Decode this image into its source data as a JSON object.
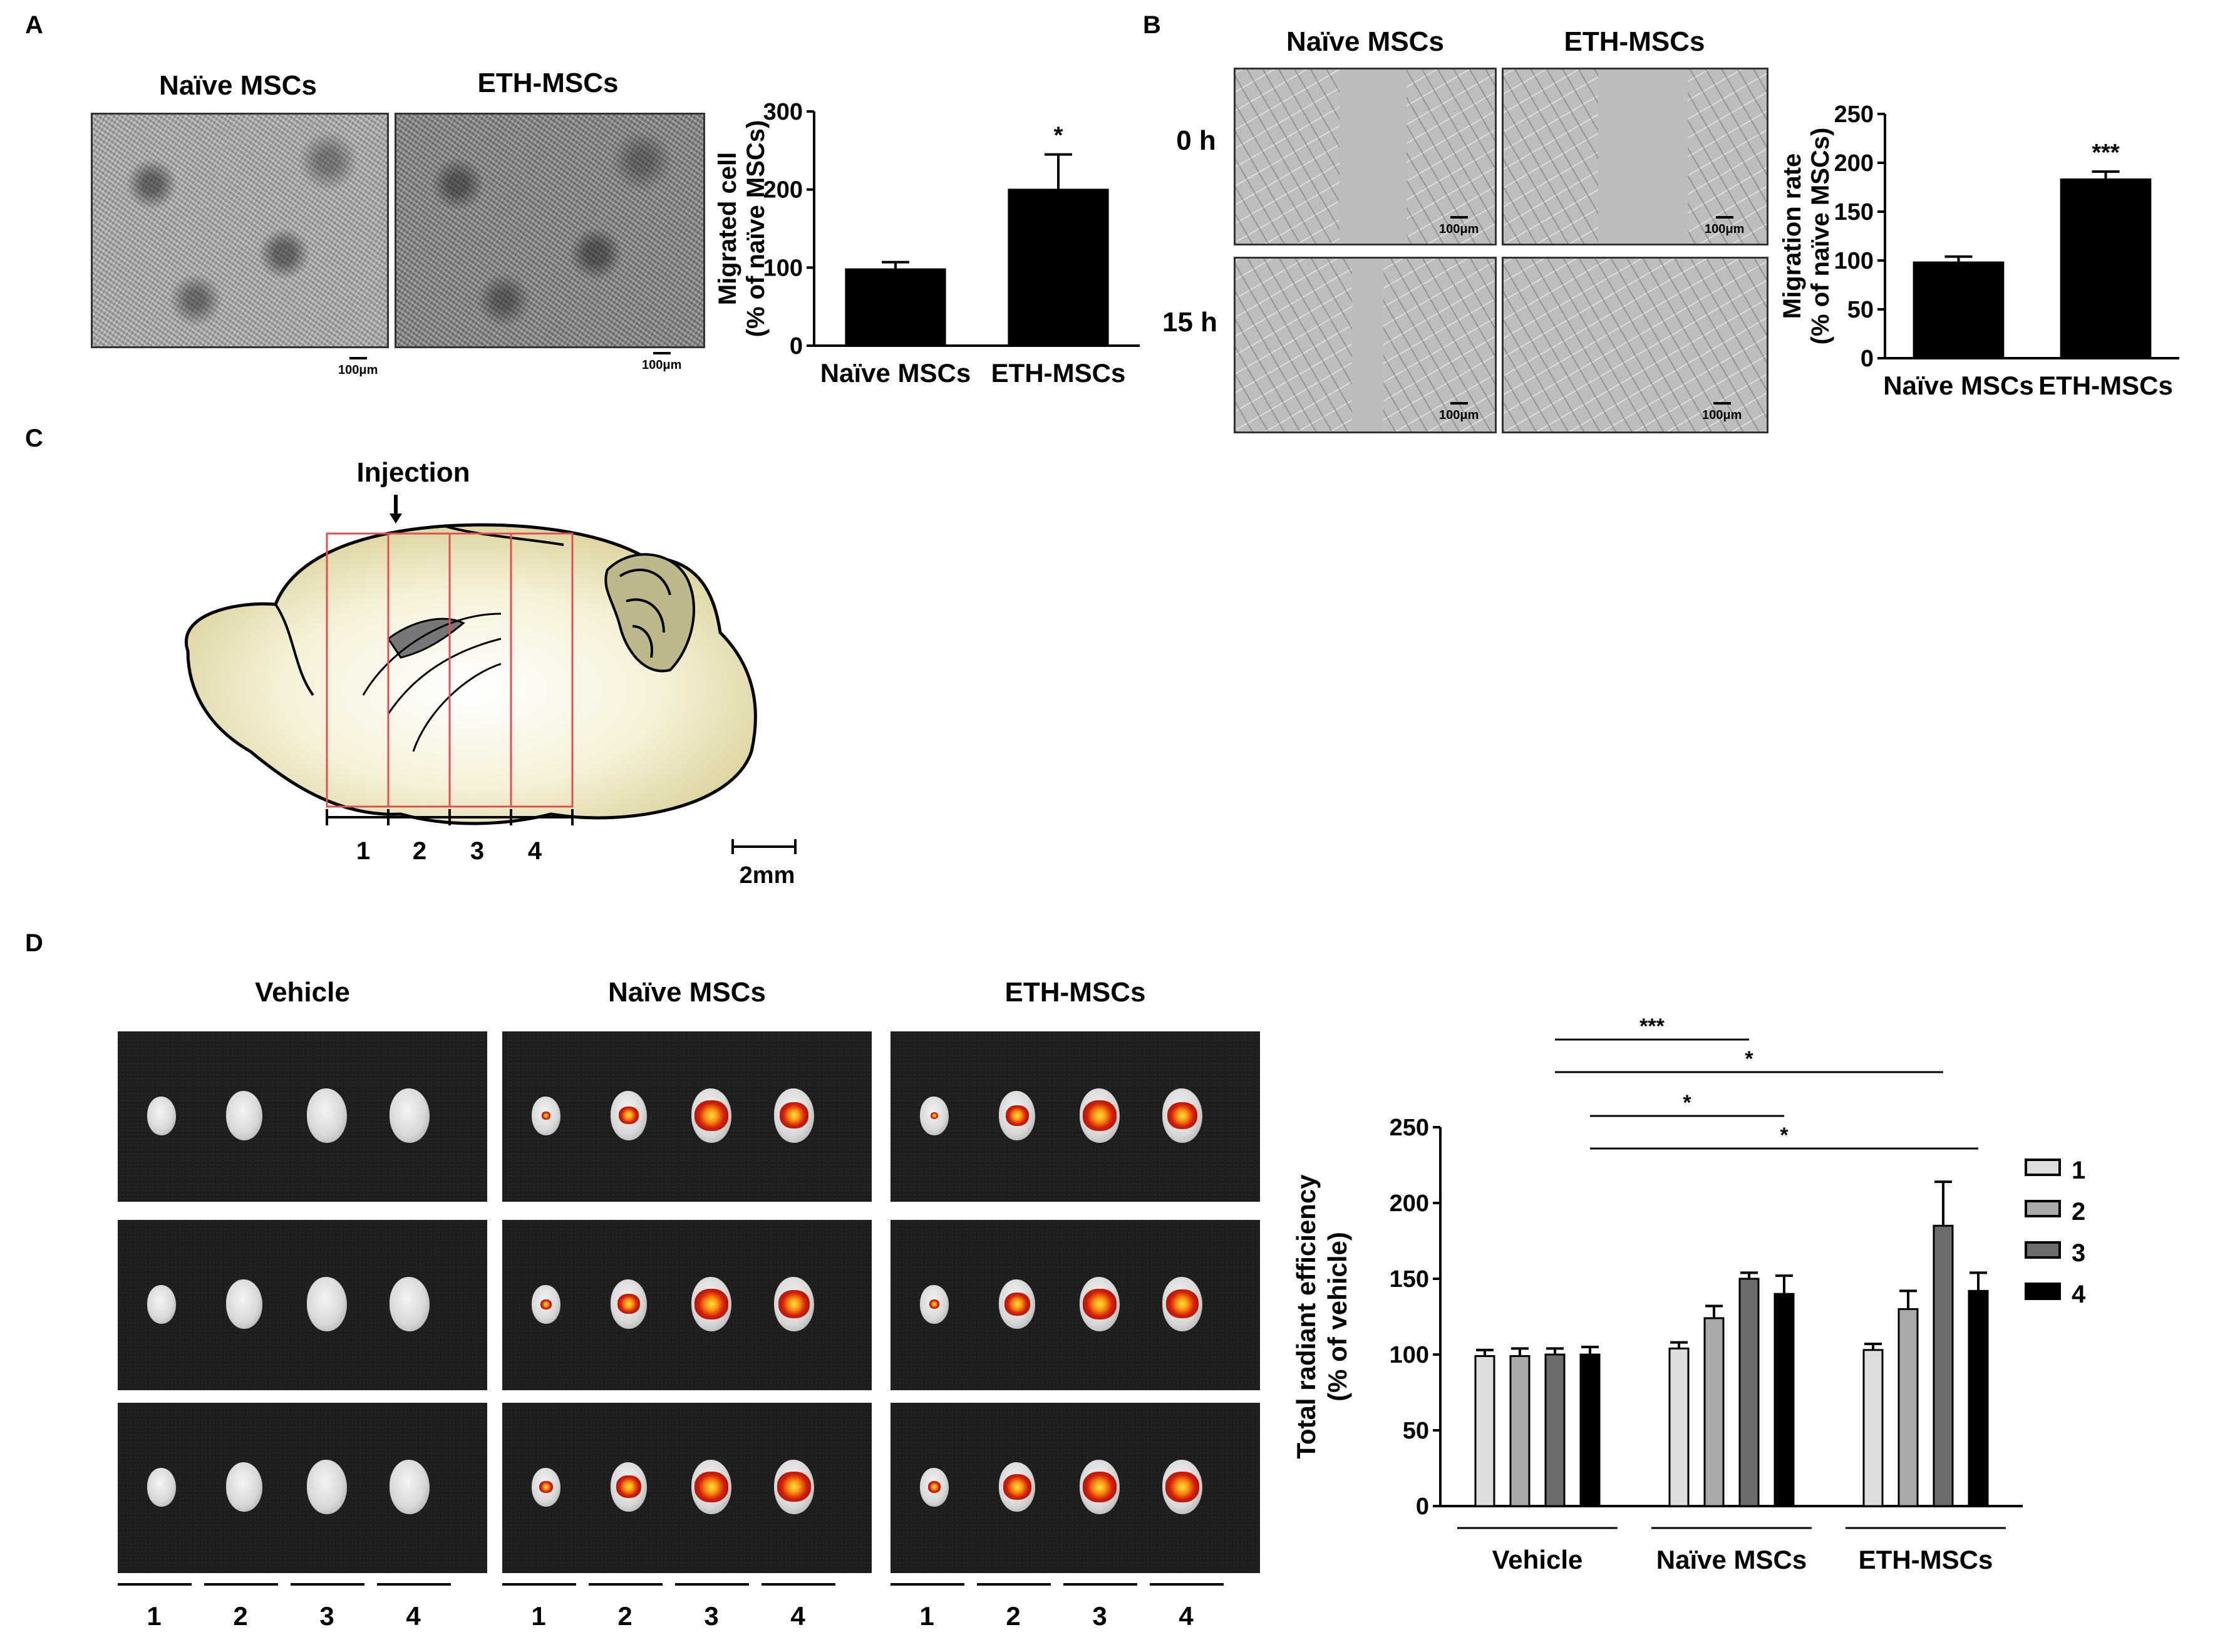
{
  "panels": {
    "A": {
      "label": "A",
      "image_titles": [
        "Naïve MSCs",
        "ETH-MSCs"
      ],
      "scale_bar": "100μm"
    },
    "B": {
      "label": "B",
      "column_titles": [
        "Naïve MSCs",
        "ETH-MSCs"
      ],
      "row_labels": [
        "0 h",
        "15 h"
      ],
      "scale_bar": "100μm"
    },
    "C": {
      "label": "C",
      "injection_label": "Injection",
      "section_labels": [
        "1",
        "2",
        "3",
        "4"
      ],
      "scale_bar": "2mm"
    },
    "D": {
      "label": "D",
      "group_titles": [
        "Vehicle",
        "Naïve MSCs",
        "ETH-MSCs"
      ],
      "section_labels": [
        "1",
        "2",
        "3",
        "4"
      ]
    }
  },
  "chart_data": [
    {
      "id": "chartA",
      "type": "bar",
      "categories": [
        "Naïve MSCs",
        "ETH-MSCs"
      ],
      "values": [
        99,
        201
      ],
      "errors": [
        8,
        44
      ],
      "ylabel_line1": "Migrated cell",
      "ylabel_line2": "(% of naïve MSCs)",
      "ylim": [
        0,
        300
      ],
      "yticks": [
        "0",
        "100",
        "200",
        "300"
      ],
      "significance": [
        "",
        "*"
      ],
      "bar_color": "#000000"
    },
    {
      "id": "chartB",
      "type": "bar",
      "categories": [
        "Naïve MSCs",
        "ETH-MSCs"
      ],
      "values": [
        99,
        184
      ],
      "errors": [
        5,
        7
      ],
      "ylabel_line1": "Migration rate",
      "ylabel_line2": "(% of naïve MSCs)",
      "ylim": [
        0,
        250
      ],
      "yticks": [
        "0",
        "50",
        "100",
        "150",
        "200",
        "250"
      ],
      "significance": [
        "",
        "***"
      ],
      "bar_color": "#000000"
    },
    {
      "id": "chartD",
      "type": "bar",
      "categories": [
        "Vehicle",
        "Naïve MSCs",
        "ETH-MSCs"
      ],
      "series": [
        {
          "name": "1",
          "values": [
            99,
            104,
            103
          ],
          "errors": [
            4,
            4,
            4
          ],
          "color": "#dedede"
        },
        {
          "name": "2",
          "values": [
            99,
            124,
            130
          ],
          "errors": [
            5,
            8,
            12
          ],
          "color": "#a9a9a9"
        },
        {
          "name": "3",
          "values": [
            100,
            150,
            185
          ],
          "errors": [
            4,
            4,
            29
          ],
          "color": "#6c6c6c"
        },
        {
          "name": "4",
          "values": [
            100,
            140,
            142
          ],
          "errors": [
            5,
            12,
            12
          ],
          "color": "#000000"
        }
      ],
      "ylabel_line1": "Total radiant efficiency",
      "ylabel_line2": "(% of vehicle)",
      "ylim": [
        0,
        250
      ],
      "yticks": [
        "0",
        "50",
        "100",
        "150",
        "200",
        "250"
      ],
      "legend_position": "right",
      "significance": [
        {
          "text": "***",
          "from": "Vehicle-3",
          "to": "Naïve MSCs-3"
        },
        {
          "text": "*",
          "from": "Vehicle-3",
          "to": "ETH-MSCs-3"
        },
        {
          "text": "*",
          "from": "Vehicle-4",
          "to": "Naïve MSCs-4"
        },
        {
          "text": "*",
          "from": "Vehicle-4",
          "to": "ETH-MSCs-4"
        }
      ]
    }
  ]
}
